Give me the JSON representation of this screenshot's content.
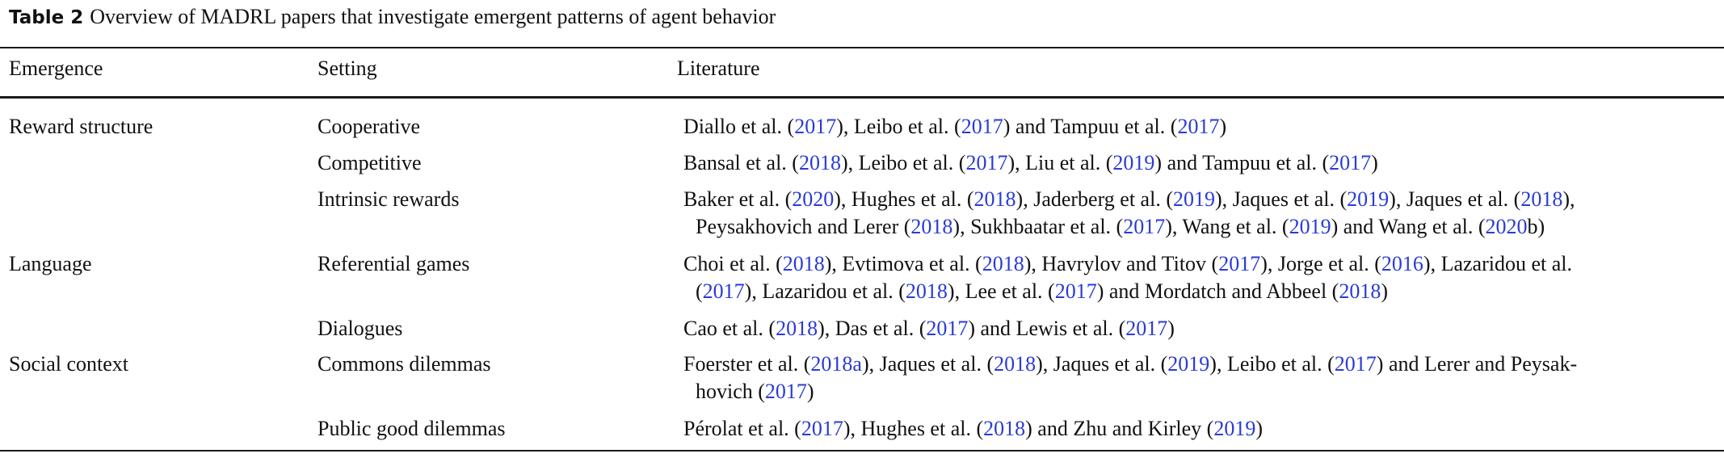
{
  "caption": {
    "label": "Table 2",
    "text": "Overview of MADRL papers that investigate emergent patterns of agent behavior"
  },
  "headers": {
    "emergence": "Emergence",
    "setting": "Setting",
    "literature": "Literature"
  },
  "rows": [
    {
      "emergence": "Reward structure",
      "setting": "Cooperative",
      "lines": [
        [
          {
            "t": "Diallo et al. ("
          },
          {
            "c": "2017"
          },
          {
            "t": "), Leibo et al. ("
          },
          {
            "c": "2017"
          },
          {
            "t": ") and Tampuu et al. ("
          },
          {
            "c": "2017"
          },
          {
            "t": ")"
          }
        ]
      ]
    },
    {
      "emergence": "",
      "setting": "Competitive",
      "lines": [
        [
          {
            "t": "Bansal et al. ("
          },
          {
            "c": "2018"
          },
          {
            "t": "), Leibo et al. ("
          },
          {
            "c": "2017"
          },
          {
            "t": "), Liu et al. ("
          },
          {
            "c": "2019"
          },
          {
            "t": ") and Tampuu et al. ("
          },
          {
            "c": "2017"
          },
          {
            "t": ")"
          }
        ]
      ]
    },
    {
      "emergence": "",
      "setting": "Intrinsic rewards",
      "lines": [
        [
          {
            "t": "Baker et al. ("
          },
          {
            "c": "2020"
          },
          {
            "t": "), Hughes et al. ("
          },
          {
            "c": "2018"
          },
          {
            "t": "), Jaderberg et al. ("
          },
          {
            "c": "2019"
          },
          {
            "t": "), Jaques et al. ("
          },
          {
            "c": "2019"
          },
          {
            "t": "), Jaques et al. ("
          },
          {
            "c": "2018"
          },
          {
            "t": "),"
          }
        ],
        [
          {
            "t": "Peysakhovich and Lerer ("
          },
          {
            "c": "2018"
          },
          {
            "t": "), Sukhbaatar et al. ("
          },
          {
            "c": "2017"
          },
          {
            "t": "), Wang et al. ("
          },
          {
            "c": "2019"
          },
          {
            "t": ") and Wang et al. ("
          },
          {
            "c": "2020"
          },
          {
            "t": "b)"
          }
        ]
      ]
    },
    {
      "emergence": "Language",
      "setting": "Referential games",
      "lines": [
        [
          {
            "t": "Choi et al. ("
          },
          {
            "c": "2018"
          },
          {
            "t": "), Evtimova et al. ("
          },
          {
            "c": "2018"
          },
          {
            "t": "), Havrylov and Titov ("
          },
          {
            "c": "2017"
          },
          {
            "t": "), Jorge et al. ("
          },
          {
            "c": "2016"
          },
          {
            "t": "), Lazaridou et al."
          }
        ],
        [
          {
            "t": "("
          },
          {
            "c": "2017"
          },
          {
            "t": "), Lazaridou et al. ("
          },
          {
            "c": "2018"
          },
          {
            "t": "), Lee et al. ("
          },
          {
            "c": "2017"
          },
          {
            "t": ") and Mordatch and Abbeel ("
          },
          {
            "c": "2018"
          },
          {
            "t": ")"
          }
        ]
      ]
    },
    {
      "emergence": "",
      "setting": "Dialogues",
      "lines": [
        [
          {
            "t": "Cao et al. ("
          },
          {
            "c": "2018"
          },
          {
            "t": "), Das et al. ("
          },
          {
            "c": "2017"
          },
          {
            "t": ") and Lewis et al. ("
          },
          {
            "c": "2017"
          },
          {
            "t": ")"
          }
        ]
      ]
    },
    {
      "emergence": "Social context",
      "setting": "Commons dilemmas",
      "lines": [
        [
          {
            "t": "Foerster et al. ("
          },
          {
            "c": "2018a"
          },
          {
            "t": "), Jaques et al. ("
          },
          {
            "c": "2018"
          },
          {
            "t": "), Jaques et al. ("
          },
          {
            "c": "2019"
          },
          {
            "t": "), Leibo et al. ("
          },
          {
            "c": "2017"
          },
          {
            "t": ") and Lerer and Peysak-"
          }
        ],
        [
          {
            "t": "hovich ("
          },
          {
            "c": "2017"
          },
          {
            "t": ")"
          }
        ]
      ]
    },
    {
      "emergence": "",
      "setting": "Public good dilemmas",
      "lines": [
        [
          {
            "t": "Pérolat et al. ("
          },
          {
            "c": "2017"
          },
          {
            "t": "), Hughes et al. ("
          },
          {
            "c": "2018"
          },
          {
            "t": ") and Zhu and Kirley ("
          },
          {
            "c": "2019"
          },
          {
            "t": ")"
          }
        ]
      ]
    }
  ]
}
